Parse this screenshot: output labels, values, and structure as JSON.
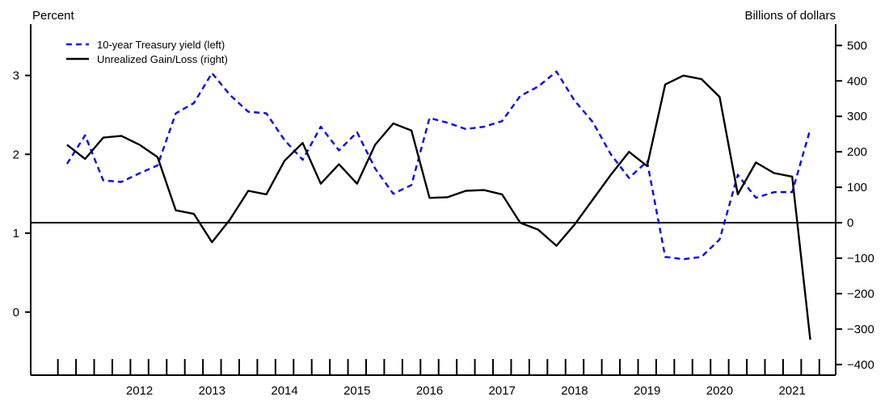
{
  "chart_data": {
    "type": "line",
    "left_axis_label": "Percent",
    "right_axis_label": "Billions of dollars",
    "left_ylim": [
      -0.8,
      3.65
    ],
    "right_ylim": [
      -430,
      560
    ],
    "left_ticks": [
      0,
      1,
      2,
      3
    ],
    "right_ticks": [
      -400,
      -300,
      -200,
      -100,
      0,
      100,
      200,
      300,
      400,
      500
    ],
    "x_range": [
      2011.0,
      2022.1
    ],
    "year_labels": [
      "2012",
      "2013",
      "2014",
      "2015",
      "2016",
      "2017",
      "2018",
      "2019",
      "2020",
      "2021"
    ],
    "zero_line_right": 0,
    "legend": {
      "placement": "top-left"
    },
    "series": [
      {
        "name": "10-year Treasury yield (left)",
        "axis": "left",
        "color": "#0000ff",
        "style": "dashed",
        "x": [
          2011.5,
          2011.75,
          2012.0,
          2012.25,
          2012.5,
          2012.75,
          2013.0,
          2013.25,
          2013.5,
          2013.75,
          2014.0,
          2014.25,
          2014.5,
          2014.75,
          2015.0,
          2015.25,
          2015.5,
          2015.75,
          2016.0,
          2016.25,
          2016.5,
          2016.75,
          2017.0,
          2017.25,
          2017.5,
          2017.75,
          2018.0,
          2018.25,
          2018.5,
          2018.75,
          2019.0,
          2019.25,
          2019.5,
          2019.75,
          2020.0,
          2020.25,
          2020.5,
          2020.75,
          2021.0,
          2021.25,
          2021.5,
          2021.75
        ],
        "values": [
          1.88,
          2.24,
          1.67,
          1.65,
          1.76,
          1.86,
          2.52,
          2.65,
          3.03,
          2.75,
          2.54,
          2.52,
          2.18,
          1.93,
          2.35,
          2.05,
          2.28,
          1.82,
          1.5,
          1.61,
          2.46,
          2.4,
          2.32,
          2.35,
          2.42,
          2.74,
          2.86,
          3.05,
          2.68,
          2.41,
          2.0,
          1.7,
          1.91,
          0.7,
          0.67,
          0.7,
          0.92,
          1.74,
          1.45,
          1.52,
          1.52,
          2.32
        ]
      },
      {
        "name": "Unrealized Gain/Loss (right)",
        "axis": "right",
        "color": "#000000",
        "style": "solid",
        "x": [
          2011.5,
          2011.75,
          2012.0,
          2012.25,
          2012.5,
          2012.75,
          2013.0,
          2013.25,
          2013.5,
          2013.75,
          2014.0,
          2014.25,
          2014.5,
          2014.75,
          2015.0,
          2015.25,
          2015.5,
          2015.75,
          2016.0,
          2016.25,
          2016.5,
          2016.75,
          2017.0,
          2017.25,
          2017.5,
          2017.75,
          2018.0,
          2018.25,
          2018.5,
          2018.75,
          2019.0,
          2019.25,
          2019.5,
          2019.75,
          2020.0,
          2020.25,
          2020.5,
          2020.75,
          2021.0,
          2021.25,
          2021.5,
          2021.75
        ],
        "values": [
          220,
          180,
          240,
          245,
          220,
          185,
          35,
          25,
          -55,
          10,
          90,
          80,
          175,
          225,
          110,
          165,
          110,
          220,
          280,
          260,
          70,
          72,
          90,
          92,
          80,
          0,
          -20,
          -65,
          -5,
          65,
          135,
          200,
          160,
          390,
          415,
          405,
          355,
          80,
          170,
          140,
          130,
          -330
        ]
      }
    ]
  }
}
